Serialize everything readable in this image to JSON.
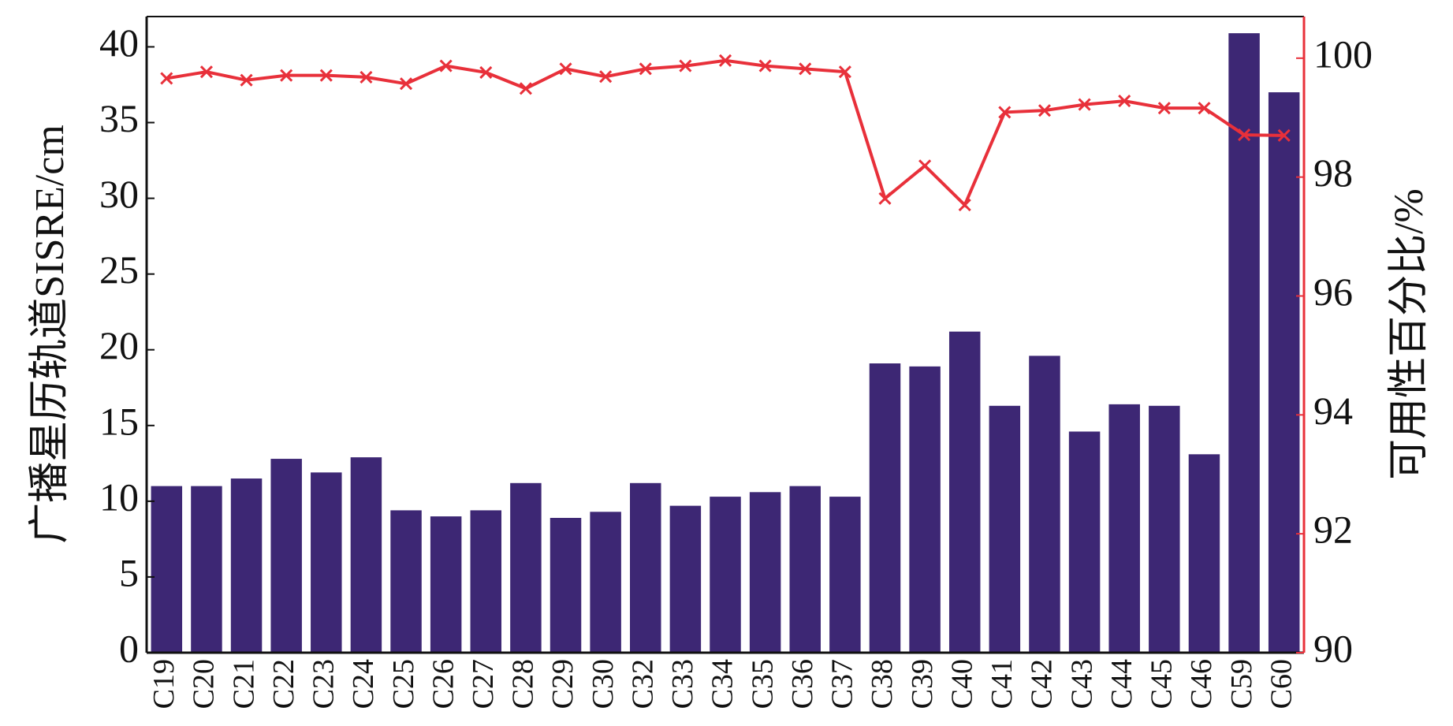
{
  "chart_data": {
    "type": "bar",
    "y_label": "广播星历轨道SISRE/cm",
    "y2_label": "可用性百分比/%",
    "categories": [
      "C19",
      "C20",
      "C21",
      "C22",
      "C23",
      "C24",
      "C25",
      "C26",
      "C27",
      "C28",
      "C29",
      "C30",
      "C32",
      "C33",
      "C34",
      "C35",
      "C36",
      "C37",
      "C38",
      "C39",
      "C40",
      "C41",
      "C42",
      "C43",
      "C44",
      "C45",
      "C46",
      "C59",
      "C60"
    ],
    "series": [
      {
        "type": "bar",
        "color": "#3d2774",
        "values": [
          11.0,
          11.0,
          11.5,
          12.8,
          11.9,
          12.9,
          9.4,
          9.0,
          9.4,
          11.2,
          8.9,
          9.3,
          11.2,
          9.7,
          10.3,
          10.6,
          11.0,
          10.3,
          19.1,
          18.9,
          21.2,
          16.3,
          19.6,
          14.6,
          16.4,
          16.3,
          13.1,
          40.9,
          37.0
        ]
      },
      {
        "type": "line",
        "axis": "y2",
        "color": "#e8303a",
        "values": [
          99.66,
          99.77,
          99.63,
          99.71,
          99.71,
          99.68,
          99.57,
          99.87,
          99.76,
          99.49,
          99.82,
          99.69,
          99.82,
          99.87,
          99.96,
          99.87,
          99.82,
          99.77,
          97.64,
          98.19,
          97.53,
          99.09,
          99.12,
          99.22,
          99.28,
          99.16,
          99.16,
          98.71,
          98.7
        ]
      }
    ],
    "ylim": [
      0,
      42
    ],
    "yticks": [
      0,
      5,
      10,
      15,
      20,
      25,
      30,
      35,
      40
    ],
    "y2lim": [
      90,
      100.7
    ],
    "y2ticks": [
      90,
      92,
      94,
      96,
      98,
      100
    ],
    "y2_axis_color": "#e8303a"
  }
}
